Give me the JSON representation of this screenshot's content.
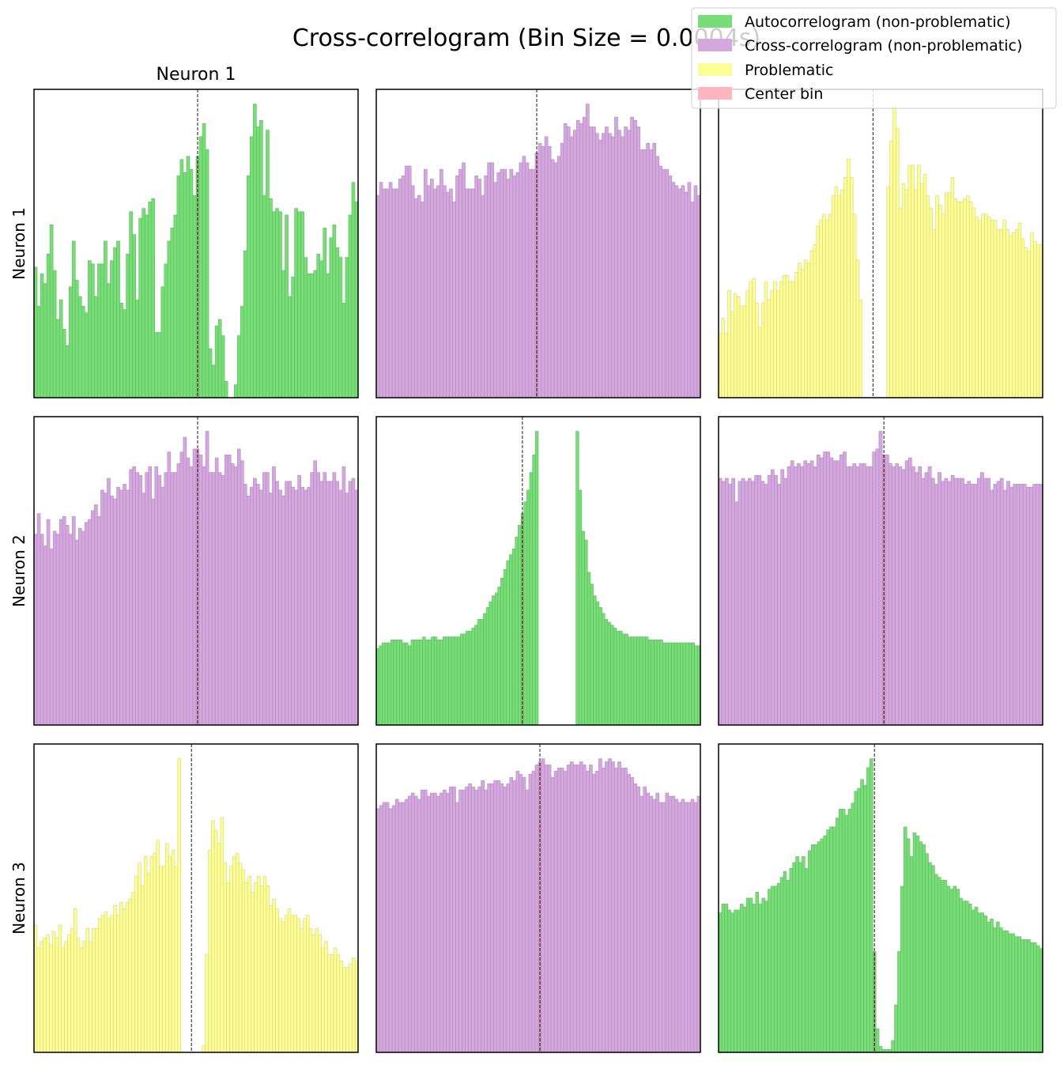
{
  "title": "Cross-correlogram (Bin Size = 0.0004s)",
  "column_labels": [
    "Neuron 1",
    "",
    ""
  ],
  "row_labels": [
    "Neuron 1",
    "Neuron 2",
    "Neuron 3"
  ],
  "colors": {
    "auto": "#77dd77",
    "cross": "#d4a7de",
    "problematic": "#fdfd96",
    "center": "#ffb6c1",
    "center_line": "#000000"
  },
  "legend": {
    "position": "top-right",
    "entries": [
      {
        "label": "Autocorrelogram (non-problematic)",
        "color": "#77dd77"
      },
      {
        "label": "Cross-correlogram (non-problematic)",
        "color": "#d4a7de"
      },
      {
        "label": "Problematic",
        "color": "#fdfd96"
      },
      {
        "label": "Center bin",
        "color": "#ffb6c1"
      }
    ]
  },
  "chart_data": {
    "type": "bar",
    "grid": false,
    "xticks": false,
    "yticks": false,
    "panels": [
      {
        "row": 0,
        "col": 0,
        "kind": "auto",
        "center_bin": 51,
        "values": [
          40,
          28,
          38,
          35,
          44,
          53,
          39,
          24,
          30,
          21,
          16,
          34,
          48,
          36,
          31,
          28,
          26,
          42,
          41,
          31,
          41,
          41,
          48,
          35,
          42,
          46,
          48,
          29,
          27,
          44,
          57,
          50,
          30,
          55,
          58,
          56,
          60,
          61,
          20,
          20,
          34,
          41,
          48,
          52,
          56,
          68,
          73,
          69,
          74,
          70,
          62,
          74,
          80,
          84,
          76,
          15,
          10,
          22,
          24,
          19,
          5,
          0,
          0,
          4,
          19,
          28,
          45,
          68,
          80,
          90,
          83,
          85,
          62,
          82,
          61,
          57,
          58,
          57,
          39,
          56,
          31,
          37,
          58,
          57,
          57,
          43,
          38,
          38,
          39,
          44,
          42,
          52,
          38,
          49,
          53,
          46,
          43,
          29,
          43,
          56,
          66,
          60
        ]
      },
      {
        "row": 0,
        "col": 1,
        "kind": "cross",
        "center_bin": 50,
        "values": [
          62,
          66,
          64,
          64,
          66,
          64,
          64,
          67,
          68,
          71,
          71,
          65,
          61,
          62,
          60,
          70,
          65,
          67,
          64,
          65,
          70,
          65,
          63,
          64,
          60,
          68,
          70,
          72,
          64,
          64,
          64,
          68,
          67,
          62,
          68,
          72,
          72,
          66,
          69,
          70,
          70,
          67,
          70,
          68,
          69,
          72,
          74,
          72,
          70,
          70,
          75,
          78,
          77,
          80,
          77,
          73,
          72,
          74,
          78,
          84,
          83,
          80,
          82,
          85,
          84,
          86,
          90,
          83,
          83,
          81,
          79,
          81,
          83,
          81,
          80,
          86,
          82,
          80,
          83,
          82,
          86,
          85,
          83,
          76,
          76,
          78,
          76,
          78,
          74,
          71,
          70,
          70,
          68,
          66,
          65,
          64,
          65,
          63,
          66,
          60,
          65,
          62
        ]
      },
      {
        "row": 0,
        "col": 2,
        "kind": "problematic",
        "center_bin": 50,
        "values": [
          21,
          26,
          21,
          35,
          28,
          34,
          33,
          30,
          30,
          35,
          38,
          39,
          31,
          23,
          31,
          38,
          32,
          35,
          38,
          35,
          38,
          40,
          40,
          38,
          38,
          41,
          44,
          42,
          45,
          44,
          48,
          50,
          56,
          58,
          60,
          58,
          60,
          66,
          69,
          66,
          68,
          72,
          78,
          72,
          60,
          45,
          32,
          0,
          0,
          0,
          0,
          0,
          0,
          0,
          0,
          69,
          84,
          96,
          88,
          62,
          70,
          68,
          76,
          76,
          68,
          76,
          70,
          73,
          66,
          62,
          55,
          66,
          63,
          60,
          67,
          67,
          72,
          65,
          64,
          64,
          65,
          66,
          64,
          62,
          59,
          58,
          60,
          60,
          59,
          58,
          58,
          55,
          55,
          58,
          55,
          53,
          54,
          55,
          57,
          52,
          49,
          48,
          54,
          51,
          50,
          50
        ]
      },
      {
        "row": 1,
        "col": 0,
        "kind": "cross",
        "center_bin": 51,
        "values": [
          65,
          72,
          65,
          61,
          70,
          60,
          66,
          65,
          70,
          71,
          68,
          65,
          71,
          63,
          67,
          66,
          69,
          70,
          73,
          75,
          71,
          80,
          79,
          84,
          78,
          77,
          81,
          80,
          82,
          80,
          87,
          88,
          86,
          85,
          79,
          86,
          88,
          77,
          88,
          85,
          81,
          86,
          93,
          86,
          86,
          89,
          93,
          98,
          91,
          88,
          94,
          94,
          92,
          88,
          100,
          86,
          86,
          91,
          86,
          85,
          92,
          92,
          89,
          88,
          94,
          90,
          82,
          78,
          81,
          84,
          82,
          80,
          86,
          86,
          79,
          88,
          83,
          80,
          78,
          83,
          83,
          81,
          80,
          85,
          81,
          80,
          81,
          86,
          90,
          86,
          83,
          86,
          83,
          83,
          86,
          83,
          80,
          88,
          79,
          83,
          84,
          80
        ]
      },
      {
        "row": 1,
        "col": 1,
        "kind": "auto",
        "center_bin": 50,
        "values": [
          26,
          27,
          28,
          28,
          28,
          29,
          29,
          29,
          29,
          28,
          28,
          27,
          29,
          29,
          29,
          29,
          30,
          29,
          29,
          30,
          30,
          29,
          29,
          30,
          30,
          30,
          30,
          30,
          30,
          31,
          31,
          32,
          32,
          33,
          34,
          36,
          36,
          38,
          40,
          42,
          44,
          45,
          47,
          50,
          53,
          56,
          58,
          60,
          64,
          68,
          72,
          76,
          80,
          86,
          92,
          100,
          0,
          0,
          0,
          0,
          0,
          0,
          0,
          0,
          0,
          0,
          0,
          0,
          0,
          100,
          80,
          66,
          63,
          52,
          48,
          44,
          42,
          40,
          38,
          36,
          35,
          34,
          33,
          32,
          32,
          31,
          31,
          30,
          30,
          30,
          30,
          30,
          30,
          30,
          29,
          29,
          29,
          29,
          29,
          28,
          28,
          28,
          28,
          28,
          28,
          28,
          28,
          28,
          28,
          28,
          27,
          27
        ]
      },
      {
        "row": 1,
        "col": 2,
        "kind": "cross",
        "center_bin": 50,
        "values": [
          84,
          83,
          84,
          82,
          84,
          76,
          83,
          84,
          83,
          84,
          83,
          85,
          85,
          83,
          82,
          85,
          87,
          85,
          82,
          87,
          84,
          88,
          90,
          88,
          89,
          88,
          90,
          89,
          90,
          88,
          92,
          91,
          93,
          93,
          91,
          90,
          90,
          92,
          93,
          88,
          88,
          89,
          88,
          89,
          89,
          88,
          88,
          93,
          94,
          100,
          92,
          92,
          89,
          88,
          89,
          88,
          87,
          90,
          91,
          88,
          86,
          88,
          84,
          86,
          88,
          84,
          82,
          86,
          83,
          84,
          83,
          85,
          84,
          84,
          84,
          82,
          83,
          82,
          82,
          84,
          86,
          84,
          84,
          80,
          82,
          83,
          84,
          80,
          83,
          81,
          82,
          82,
          82,
          82,
          81,
          81,
          82,
          82,
          82
        ]
      },
      {
        "row": 2,
        "col": 0,
        "kind": "problematic",
        "center_bin": 51,
        "values": [
          39,
          32,
          34,
          35,
          36,
          33,
          37,
          35,
          39,
          32,
          34,
          36,
          38,
          44,
          35,
          32,
          34,
          38,
          34,
          38,
          38,
          41,
          42,
          43,
          41,
          42,
          45,
          42,
          46,
          44,
          46,
          47,
          49,
          54,
          58,
          51,
          60,
          55,
          60,
          61,
          65,
          57,
          57,
          64,
          60,
          62,
          57,
          90,
          0,
          0,
          0,
          0,
          0,
          0,
          0,
          2,
          30,
          62,
          71,
          68,
          64,
          72,
          58,
          52,
          57,
          60,
          61,
          58,
          56,
          52,
          54,
          49,
          52,
          54,
          51,
          54,
          51,
          45,
          47,
          44,
          41,
          40,
          42,
          44,
          42,
          42,
          41,
          38,
          41,
          42,
          38,
          36,
          38,
          36,
          32,
          34,
          30,
          30,
          32,
          30,
          28,
          26,
          26,
          27,
          29,
          28
        ]
      },
      {
        "row": 2,
        "col": 1,
        "kind": "cross",
        "center_bin": 51,
        "values": [
          78,
          79,
          80,
          80,
          78,
          79,
          81,
          80,
          80,
          81,
          82,
          83,
          82,
          81,
          84,
          84,
          82,
          83,
          83,
          82,
          83,
          84,
          83,
          85,
          85,
          80,
          84,
          84,
          85,
          86,
          85,
          84,
          85,
          87,
          84,
          86,
          86,
          87,
          87,
          86,
          85,
          86,
          88,
          87,
          90,
          89,
          88,
          84,
          89,
          90,
          92,
          93,
          94,
          92,
          92,
          88,
          90,
          91,
          91,
          90,
          92,
          93,
          92,
          92,
          93,
          92,
          90,
          92,
          89,
          90,
          94,
          91,
          93,
          94,
          93,
          91,
          93,
          91,
          91,
          89,
          88,
          86,
          85,
          82,
          85,
          83,
          82,
          81,
          83,
          80,
          80,
          83,
          82,
          82,
          81,
          80,
          81,
          80,
          80,
          81,
          80,
          82
        ]
      },
      {
        "row": 2,
        "col": 2,
        "kind": "auto",
        "center_bin": 50,
        "values": [
          47,
          50,
          50,
          48,
          47,
          48,
          48,
          50,
          49,
          52,
          52,
          50,
          54,
          50,
          52,
          51,
          55,
          56,
          56,
          57,
          59,
          61,
          58,
          62,
          64,
          66,
          64,
          66,
          62,
          68,
          70,
          70,
          71,
          72,
          73,
          75,
          76,
          76,
          79,
          82,
          82,
          80,
          82,
          84,
          88,
          89,
          92,
          90,
          96,
          99,
          34,
          8,
          2,
          1,
          1,
          1,
          4,
          16,
          34,
          56,
          76,
          72,
          66,
          74,
          73,
          71,
          70,
          67,
          64,
          63,
          60,
          59,
          58,
          58,
          56,
          55,
          56,
          55,
          52,
          51,
          51,
          50,
          48,
          49,
          47,
          47,
          46,
          44,
          45,
          42,
          44,
          42,
          41,
          41,
          40,
          40,
          39,
          39,
          38,
          38,
          38,
          37,
          37,
          36,
          35
        ]
      }
    ]
  }
}
